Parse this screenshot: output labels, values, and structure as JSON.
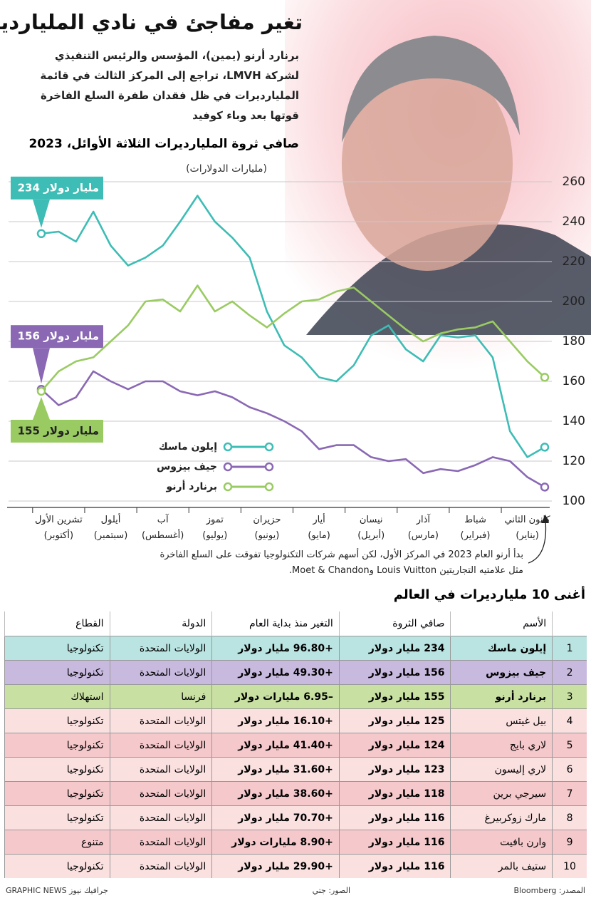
{
  "header": {
    "title": "تغير مفاجئ في نادي المليارديرات",
    "subtitle": [
      "برنارد أرنو (يمين)، المؤسس والرئيس التنفيذي",
      "لشركة LMVH، تراجع إلى المركز الثالث في قائمة",
      "المليارديرات في ظل فقدان طفرة السلع الفاخرة",
      "قوتها بعد وباء كوفيد"
    ]
  },
  "chart_data": {
    "type": "line",
    "title": "صافي ثروة المليارديرات الثلاثة الأوائل، 2023",
    "y_label": "(مليارات الدولارات)",
    "categories": [
      null,
      "كانون الثاني",
      null,
      null,
      "شباط",
      null,
      null,
      "آذار",
      null,
      null,
      "نيسان",
      null,
      null,
      "أيار",
      null,
      null,
      "حزيران",
      null,
      null,
      "تموز",
      null,
      null,
      "آب",
      null,
      null,
      "أيلول",
      null,
      null,
      "تشرين الأول",
      null
    ],
    "category_notes": [
      null,
      "(يناير)",
      null,
      null,
      "(فبراير)",
      null,
      null,
      "(مارس)",
      null,
      null,
      "(أبريل)",
      null,
      null,
      "(مايو)",
      null,
      null,
      "(يونيو)",
      null,
      null,
      "(يوليو)",
      null,
      null,
      "(أغسطس)",
      null,
      null,
      "(سبتمبر)",
      null,
      null,
      "(أكتوبر)",
      null
    ],
    "series": [
      {
        "name": "إيلون ماسك",
        "color": "#3dbdb5",
        "values": [
          127,
          122,
          135,
          172,
          183,
          182,
          183,
          170,
          176,
          188,
          183,
          168,
          160,
          162,
          172,
          178,
          195,
          222,
          232,
          240,
          253,
          240,
          228,
          222,
          218,
          228,
          245,
          230,
          235,
          234
        ],
        "value_labels": [
          null,
          null,
          null,
          null,
          null,
          null,
          null,
          null,
          null,
          null,
          null,
          null,
          null,
          null,
          null,
          null,
          null,
          null,
          null,
          null,
          null,
          null,
          null,
          null,
          null,
          null,
          null,
          null,
          null,
          "234 مليار دولار"
        ]
      },
      {
        "name": "جيف بيزوس",
        "color": "#8a68b4",
        "values": [
          107,
          112,
          120,
          122,
          118,
          115,
          116,
          114,
          121,
          120,
          122,
          128,
          128,
          126,
          135,
          140,
          144,
          147,
          152,
          155,
          153,
          155,
          160,
          160,
          156,
          160,
          165,
          152,
          148,
          156
        ],
        "value_labels": [
          null,
          null,
          null,
          null,
          null,
          null,
          null,
          null,
          null,
          null,
          null,
          null,
          null,
          null,
          null,
          null,
          null,
          null,
          null,
          null,
          null,
          null,
          null,
          null,
          null,
          null,
          null,
          null,
          null,
          "156 مليار دولار"
        ]
      },
      {
        "name": "برنارد أرنو",
        "color": "#9acb62",
        "values": [
          162,
          170,
          180,
          190,
          187,
          186,
          184,
          180,
          186,
          193,
          200,
          207,
          205,
          201,
          200,
          194,
          187,
          193,
          200,
          195,
          208,
          195,
          201,
          200,
          188,
          180,
          172,
          170,
          165,
          155
        ],
        "value_labels": [
          null,
          null,
          null,
          null,
          null,
          null,
          null,
          null,
          null,
          null,
          null,
          null,
          null,
          null,
          null,
          null,
          null,
          null,
          null,
          null,
          null,
          null,
          null,
          null,
          null,
          null,
          null,
          null,
          null,
          "155 مليار دولار"
        ]
      }
    ],
    "ylim": [
      100,
      260
    ],
    "yticks": [
      100,
      120,
      140,
      160,
      180,
      200,
      220,
      240,
      260
    ],
    "grid": true,
    "annotation": [
      "بدأ أرنو العام 2023 في المركز الأول، لكن أسهم شركات التكنولوجيا تفوقت على السلع الفاخرة",
      "مثل علامتيه التجاريتين Louis Vuitton وMoet & Chandon."
    ]
  },
  "table": {
    "title": "أغنى 10 مليارديرات في العالم",
    "header": [
      "الأسم",
      "صافي الثروة",
      "التغير منذ بداية العام",
      "الدولة",
      "القطاع"
    ],
    "rows": [
      [
        1,
        "إيلون ماسك",
        "234 مليار دولار",
        "+96.80 مليار دولار",
        "الولايات المتحدة",
        "تكنولوجيا"
      ],
      [
        2,
        "جيف بيزوس",
        "156 مليار دولار",
        "+49.30 مليار دولار",
        "الولايات المتحدة",
        "تكنولوجيا"
      ],
      [
        3,
        "برنارد أرنو",
        "155 مليار دولار",
        "–6.95 مليارات دولار",
        "فرنسا",
        "استهلاك"
      ],
      [
        4,
        "بيل غيتس",
        "125 مليار دولار",
        "+16.10 مليار دولار",
        "الولايات المتحدة",
        "تكنولوجيا"
      ],
      [
        5,
        "لاري بايج",
        "124 مليار دولار",
        "+41.40 مليار دولار",
        "الولايات المتحدة",
        "تكنولوجيا"
      ],
      [
        6,
        "لاري إليسون",
        "123 مليار دولار",
        "+31.60 مليار دولار",
        "الولايات المتحدة",
        "تكنولوجيا"
      ],
      [
        7,
        "سيرجي برين",
        "118 مليار دولار",
        "+38.60 مليار دولار",
        "الولايات المتحدة",
        "تكنولوجيا"
      ],
      [
        8,
        "مارك زوكربيرغ",
        "116 مليار دولار",
        "+70.70 مليار دولار",
        "الولايات المتحدة",
        "تكنولوجيا"
      ],
      [
        9,
        "وارن بافيت",
        "116 مليار دولار",
        "+8.90 مليارات دولار",
        "الولايات المتحدة",
        "متنوع"
      ],
      [
        10,
        "ستيف بالمر",
        "116 مليار دولار",
        "+29.90 مليار دولار",
        "الولايات المتحدة",
        "تكنولوجيا"
      ]
    ]
  },
  "footer": {
    "source": "المصدر: Bloomberg",
    "photos": "الصور: جتي",
    "credit": "GRAPHIC NEWS جرافيك نيوز"
  }
}
